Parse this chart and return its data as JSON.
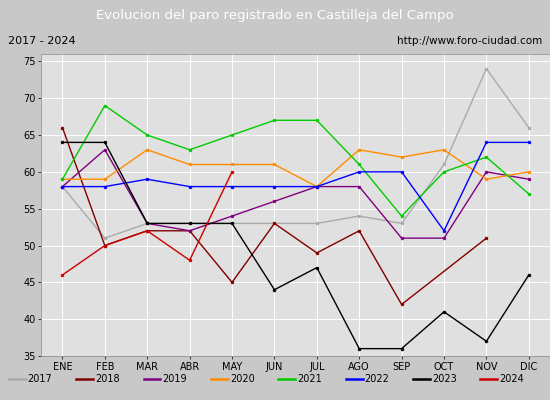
{
  "title": "Evolucion del paro registrado en Castilleja del Campo",
  "subtitle_left": "2017 - 2024",
  "subtitle_right": "http://www.foro-ciudad.com",
  "months": [
    "ENE",
    "FEB",
    "MAR",
    "ABR",
    "MAY",
    "JUN",
    "JUL",
    "AGO",
    "SEP",
    "OCT",
    "NOV",
    "DIC"
  ],
  "ylim": [
    35,
    76
  ],
  "yticks": [
    35,
    40,
    45,
    50,
    55,
    60,
    65,
    70,
    75
  ],
  "series": {
    "2017": {
      "color": "#aaaaaa",
      "values": [
        58,
        51,
        53,
        53,
        53,
        53,
        53,
        54,
        53,
        61,
        74,
        66
      ]
    },
    "2018": {
      "color": "#800000",
      "values": [
        66,
        50,
        52,
        52,
        45,
        53,
        49,
        52,
        42,
        null,
        51,
        null
      ]
    },
    "2019": {
      "color": "#800080",
      "values": [
        58,
        63,
        53,
        52,
        54,
        56,
        58,
        58,
        51,
        51,
        60,
        59
      ]
    },
    "2020": {
      "color": "#ff8c00",
      "values": [
        59,
        59,
        63,
        61,
        61,
        61,
        58,
        63,
        62,
        63,
        59,
        60
      ]
    },
    "2021": {
      "color": "#00cc00",
      "values": [
        59,
        69,
        65,
        63,
        65,
        67,
        67,
        61,
        54,
        60,
        62,
        57
      ]
    },
    "2022": {
      "color": "#0000ff",
      "values": [
        58,
        58,
        59,
        58,
        58,
        58,
        58,
        60,
        60,
        52,
        64,
        64
      ]
    },
    "2023": {
      "color": "#000000",
      "values": [
        64,
        64,
        53,
        53,
        53,
        44,
        47,
        36,
        36,
        41,
        37,
        46
      ]
    },
    "2024": {
      "color": "#cc0000",
      "values": [
        46,
        50,
        52,
        48,
        60,
        null,
        null,
        null,
        null,
        null,
        null,
        null
      ]
    }
  },
  "bg_color": "#c8c8c8",
  "plot_bg": "#e0e0e0",
  "title_bg": "#4472c4",
  "title_color": "white",
  "subtitle_bg": "#ffffff",
  "grid_color": "#ffffff",
  "legend_bg": "#f0f0f0",
  "title_fontsize": 9.5,
  "subtitle_fontsize": 8,
  "tick_fontsize": 7,
  "legend_fontsize": 7
}
